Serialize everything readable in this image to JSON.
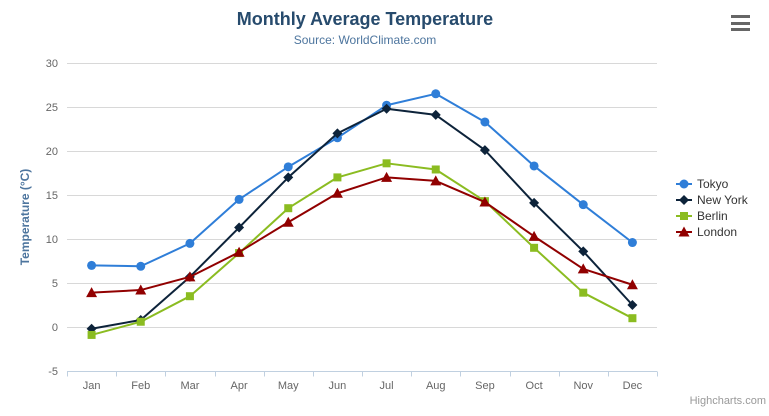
{
  "chart": {
    "title": "Monthly Average Temperature",
    "subtitle": "Source: WorldClimate.com",
    "credits": "Highcharts.com"
  },
  "chart_data": {
    "type": "line",
    "title": "Monthly Average Temperature",
    "subtitle": "Source: WorldClimate.com",
    "xlabel": "",
    "ylabel": "Temperature (°C)",
    "ylim": [
      -5,
      30
    ],
    "yticks": [
      30,
      25,
      20,
      15,
      10,
      5,
      0,
      -5
    ],
    "grid": true,
    "legend_position": "right",
    "categories": [
      "Jan",
      "Feb",
      "Mar",
      "Apr",
      "May",
      "Jun",
      "Jul",
      "Aug",
      "Sep",
      "Oct",
      "Nov",
      "Dec"
    ],
    "series": [
      {
        "name": "Tokyo",
        "color": "#2f7ed8",
        "marker": "circle",
        "values": [
          7.0,
          6.9,
          9.5,
          14.5,
          18.2,
          21.5,
          25.2,
          26.5,
          23.3,
          18.3,
          13.9,
          9.6
        ]
      },
      {
        "name": "New York",
        "color": "#0d233a",
        "marker": "diamond",
        "values": [
          -0.2,
          0.8,
          5.7,
          11.3,
          17.0,
          22.0,
          24.8,
          24.1,
          20.1,
          14.1,
          8.6,
          2.5
        ]
      },
      {
        "name": "Berlin",
        "color": "#8bbc21",
        "marker": "square",
        "values": [
          -0.9,
          0.6,
          3.5,
          8.4,
          13.5,
          17.0,
          18.6,
          17.9,
          14.3,
          9.0,
          3.9,
          1.0
        ]
      },
      {
        "name": "London",
        "color": "#910000",
        "marker": "triangle",
        "values": [
          3.9,
          4.2,
          5.7,
          8.5,
          11.9,
          15.2,
          17.0,
          16.6,
          14.2,
          10.3,
          6.6,
          4.8
        ]
      }
    ]
  },
  "colors": {
    "title": "#274b6d",
    "subtitle": "#4d759e",
    "axis_label": "#666666",
    "axis_title": "#4d759e",
    "grid_line": "#d8d8d8",
    "axis_line": "#c0d0e0",
    "legend_text": "#333333",
    "credits": "#999999",
    "menu_icon": "#666666"
  }
}
